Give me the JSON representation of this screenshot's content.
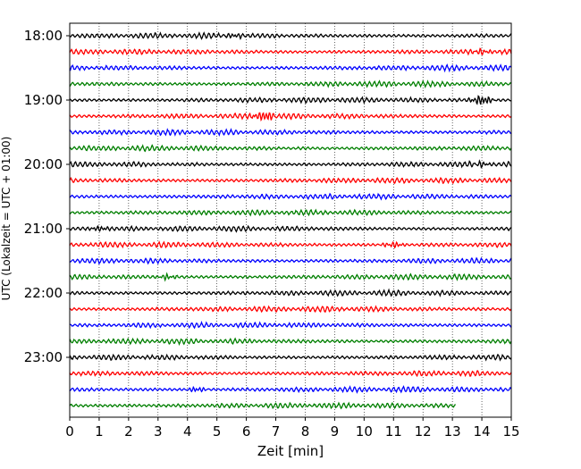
{
  "chart_data": {
    "type": "line",
    "xlabel": "Zeit  [min]",
    "ylabel": "UTC (Lokalzeit = UTC + 01:00)",
    "xlim": [
      0,
      15
    ],
    "x_ticks": [
      "0",
      "1",
      "2",
      "3",
      "4",
      "5",
      "6",
      "7",
      "8",
      "9",
      "10",
      "11",
      "12",
      "13",
      "14",
      "15"
    ],
    "y_ticks": [
      {
        "label": "18:00",
        "row": 0
      },
      {
        "label": "19:00",
        "row": 4
      },
      {
        "label": "20:00",
        "row": 8
      },
      {
        "label": "21:00",
        "row": 12
      },
      {
        "label": "22:00",
        "row": 16
      },
      {
        "label": "23:00",
        "row": 20
      }
    ],
    "row_interval_min": 15,
    "rows": 24,
    "last_trace_end_min": 13.1,
    "colors": [
      "#000000",
      "#ff0000",
      "#0000ff",
      "#007f00"
    ],
    "grid": "vertical dotted at each minute",
    "events": [
      {
        "row": 0,
        "x": 5.6,
        "amp": 0.35
      },
      {
        "row": 1,
        "x": 14.0,
        "amp": 0.45
      },
      {
        "row": 4,
        "x": 14.0,
        "amp": 0.9
      },
      {
        "row": 5,
        "x": 6.6,
        "amp": 1.0
      },
      {
        "row": 8,
        "x": 14.0,
        "amp": 0.4
      },
      {
        "row": 12,
        "x": 1.0,
        "amp": 0.45
      },
      {
        "row": 13,
        "x": 11.0,
        "amp": 0.5
      },
      {
        "row": 15,
        "x": 3.3,
        "amp": 0.45
      },
      {
        "row": 22,
        "x": 4.3,
        "amp": 0.4
      }
    ]
  }
}
